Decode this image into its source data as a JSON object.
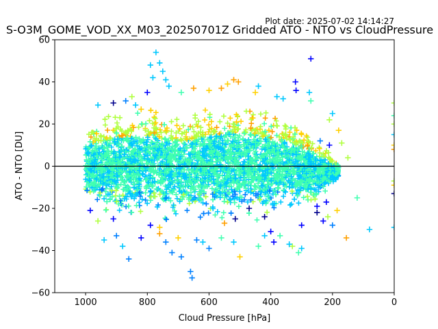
{
  "plot_date": "Plot date: 2025-07-02 14:14:27",
  "chart_data": {
    "type": "scatter",
    "title": "S-O3M_GOME_VOD_XX_M03_20250701Z Gridded ATO - NTO vs CloudPressure",
    "xlabel": "Cloud Pressure [hPa]",
    "ylabel": "ATO - NTO [DU]",
    "xlim": [
      1100,
      0
    ],
    "ylim": [
      -60,
      60
    ],
    "x_inverted": true,
    "xticks": [
      1000,
      800,
      600,
      400,
      200,
      0
    ],
    "yticks": [
      -60,
      -40,
      -20,
      0,
      20,
      40,
      60
    ],
    "marker": "+",
    "reference_line_y": 0,
    "grid": false,
    "colors": [
      "#00008b",
      "#0000ff",
      "#0080ff",
      "#00c8ff",
      "#40ffb0",
      "#b0ff40",
      "#ffd000",
      "#ffa000"
    ],
    "cloud_envelope": [
      [
        1000,
        -22,
        23
      ],
      [
        900,
        -26,
        28
      ],
      [
        800,
        -27,
        30
      ],
      [
        700,
        -28,
        27
      ],
      [
        600,
        -29,
        31
      ],
      [
        500,
        -28,
        33
      ],
      [
        400,
        -26,
        28
      ],
      [
        300,
        -23,
        22
      ],
      [
        250,
        -20,
        15
      ],
      [
        200,
        -10,
        5
      ],
      [
        180,
        -6,
        3
      ]
    ],
    "points": [
      {
        "x": 772,
        "y": 54,
        "c": 3
      },
      {
        "x": 760,
        "y": 49,
        "c": 3
      },
      {
        "x": 790,
        "y": 48,
        "c": 3
      },
      {
        "x": 750,
        "y": 45,
        "c": 3
      },
      {
        "x": 782,
        "y": 42,
        "c": 3
      },
      {
        "x": 740,
        "y": 41,
        "c": 3
      },
      {
        "x": 730,
        "y": 38,
        "c": 3
      },
      {
        "x": 800,
        "y": 35,
        "c": 1
      },
      {
        "x": 520,
        "y": 41,
        "c": 7
      },
      {
        "x": 505,
        "y": 40,
        "c": 7
      },
      {
        "x": 540,
        "y": 39,
        "c": 6
      },
      {
        "x": 560,
        "y": 37,
        "c": 7
      },
      {
        "x": 440,
        "y": 38,
        "c": 3
      },
      {
        "x": 380,
        "y": 33,
        "c": 3
      },
      {
        "x": 360,
        "y": 32,
        "c": 3
      },
      {
        "x": 320,
        "y": 40,
        "c": 1
      },
      {
        "x": 318,
        "y": 36,
        "c": 1
      },
      {
        "x": 270,
        "y": 51,
        "c": 1
      },
      {
        "x": 275,
        "y": 35,
        "c": 3
      },
      {
        "x": 270,
        "y": 31,
        "c": 4
      },
      {
        "x": 200,
        "y": 25,
        "c": 3
      },
      {
        "x": 210,
        "y": 22,
        "c": 5
      },
      {
        "x": 180,
        "y": 17,
        "c": 6
      },
      {
        "x": 170,
        "y": 11,
        "c": 5
      },
      {
        "x": 150,
        "y": 4,
        "c": 5
      },
      {
        "x": 600,
        "y": 36,
        "c": 6
      },
      {
        "x": 650,
        "y": 37,
        "c": 7
      },
      {
        "x": 690,
        "y": 35,
        "c": 4
      },
      {
        "x": 450,
        "y": 35,
        "c": 6
      },
      {
        "x": 910,
        "y": 30,
        "c": 0
      },
      {
        "x": 870,
        "y": 31,
        "c": 2
      },
      {
        "x": 838,
        "y": 29,
        "c": 3
      },
      {
        "x": 960,
        "y": 29,
        "c": 3
      },
      {
        "x": 820,
        "y": 27,
        "c": 6
      },
      {
        "x": 850,
        "y": 33,
        "c": 5
      },
      {
        "x": 0,
        "y": 30,
        "c": 5
      },
      {
        "x": 0,
        "y": 24,
        "c": 4
      },
      {
        "x": 0,
        "y": 20,
        "c": 5
      },
      {
        "x": 0,
        "y": 15,
        "c": 3
      },
      {
        "x": 0,
        "y": 10,
        "c": 6
      },
      {
        "x": 0,
        "y": 8,
        "c": 7
      },
      {
        "x": 0,
        "y": -7,
        "c": 5
      },
      {
        "x": 0,
        "y": -9,
        "c": 6
      },
      {
        "x": 0,
        "y": -13,
        "c": 0
      },
      {
        "x": 0,
        "y": -29,
        "c": 3
      },
      {
        "x": 120,
        "y": -15,
        "c": 4
      },
      {
        "x": 80,
        "y": -30,
        "c": 3
      },
      {
        "x": 155,
        "y": -34,
        "c": 7
      },
      {
        "x": 185,
        "y": -21,
        "c": 6
      },
      {
        "x": 200,
        "y": -28,
        "c": 2
      },
      {
        "x": 215,
        "y": -24,
        "c": 5
      },
      {
        "x": 230,
        "y": -26,
        "c": 1
      },
      {
        "x": 250,
        "y": -22,
        "c": 0
      },
      {
        "x": 300,
        "y": -39,
        "c": 3
      },
      {
        "x": 310,
        "y": -41,
        "c": 4
      },
      {
        "x": 330,
        "y": -38,
        "c": 5
      },
      {
        "x": 340,
        "y": -37,
        "c": 3
      },
      {
        "x": 370,
        "y": -33,
        "c": 4
      },
      {
        "x": 390,
        "y": -36,
        "c": 1
      },
      {
        "x": 400,
        "y": -31,
        "c": 1
      },
      {
        "x": 420,
        "y": -33,
        "c": 3
      },
      {
        "x": 440,
        "y": -38,
        "c": 4
      },
      {
        "x": 500,
        "y": -43,
        "c": 6
      },
      {
        "x": 520,
        "y": -36,
        "c": 3
      },
      {
        "x": 560,
        "y": -34,
        "c": 4
      },
      {
        "x": 600,
        "y": -39,
        "c": 2
      },
      {
        "x": 620,
        "y": -36,
        "c": 3
      },
      {
        "x": 640,
        "y": -35,
        "c": 2
      },
      {
        "x": 660,
        "y": -50,
        "c": 2
      },
      {
        "x": 655,
        "y": -53,
        "c": 2
      },
      {
        "x": 690,
        "y": -43,
        "c": 2
      },
      {
        "x": 720,
        "y": -41,
        "c": 2
      },
      {
        "x": 740,
        "y": -36,
        "c": 2
      },
      {
        "x": 700,
        "y": -34,
        "c": 6
      },
      {
        "x": 760,
        "y": -32,
        "c": 7
      },
      {
        "x": 790,
        "y": -28,
        "c": 1
      },
      {
        "x": 820,
        "y": -34,
        "c": 1
      },
      {
        "x": 860,
        "y": -44,
        "c": 2
      },
      {
        "x": 880,
        "y": -38,
        "c": 3
      },
      {
        "x": 900,
        "y": -33,
        "c": 2
      },
      {
        "x": 940,
        "y": -35,
        "c": 3
      },
      {
        "x": 960,
        "y": -26,
        "c": 5
      },
      {
        "x": 985,
        "y": -21,
        "c": 1
      },
      {
        "x": 910,
        "y": -25,
        "c": 1
      },
      {
        "x": 760,
        "y": -29,
        "c": 6
      },
      {
        "x": 550,
        "y": -27,
        "c": 7
      },
      {
        "x": 515,
        "y": -25,
        "c": 0
      },
      {
        "x": 470,
        "y": -20,
        "c": 0
      },
      {
        "x": 420,
        "y": -24,
        "c": 0
      },
      {
        "x": 300,
        "y": -28,
        "c": 1
      },
      {
        "x": 250,
        "y": -19,
        "c": 1
      },
      {
        "x": 220,
        "y": -17,
        "c": 1
      },
      {
        "x": 210,
        "y": 10,
        "c": 1
      },
      {
        "x": 240,
        "y": 12,
        "c": 2
      }
    ]
  }
}
